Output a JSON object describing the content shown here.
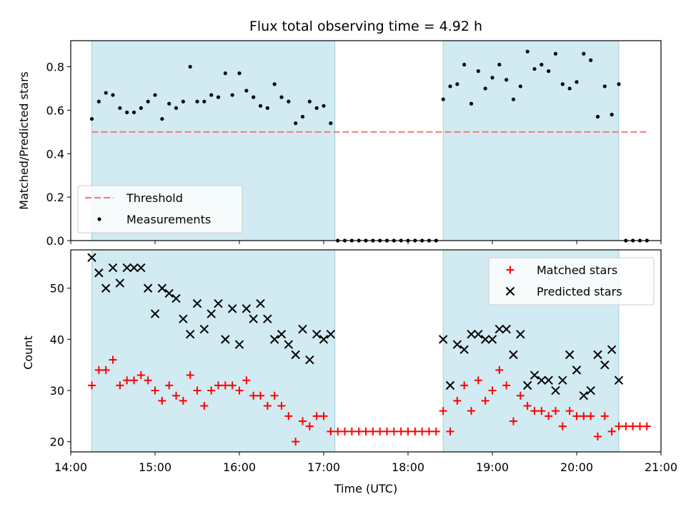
{
  "chart_data": [
    {
      "type": "scatter",
      "title": "Flux total observing time = 4.92 h",
      "xlabel": "",
      "ylabel": "Matched/Predicted stars",
      "xlim": [
        "14:00",
        "21:00"
      ],
      "ylim": [
        0,
        0.92
      ],
      "yticks": [
        "0.0",
        "0.2",
        "0.4",
        "0.6",
        "0.8"
      ],
      "legend_position": "lower-left",
      "observing_windows": [
        [
          "14:15",
          "17:08"
        ],
        [
          "18:25",
          "20:30"
        ]
      ],
      "window_color": "#add8e6",
      "series": [
        {
          "name": "Threshold",
          "kind": "dashed-line",
          "color": "#f08080",
          "x": [
            "14:15",
            "20:50"
          ],
          "y": [
            0.5,
            0.5
          ]
        },
        {
          "name": "Measurements",
          "kind": "points",
          "color": "#000000",
          "x": [
            "14:15",
            "14:20",
            "14:25",
            "14:30",
            "14:35",
            "14:40",
            "14:45",
            "14:50",
            "14:55",
            "15:00",
            "15:05",
            "15:10",
            "15:15",
            "15:20",
            "15:25",
            "15:30",
            "15:35",
            "15:40",
            "15:45",
            "15:50",
            "15:55",
            "16:00",
            "16:05",
            "16:10",
            "16:15",
            "16:20",
            "16:25",
            "16:30",
            "16:35",
            "16:40",
            "16:45",
            "16:50",
            "16:55",
            "17:00",
            "17:05",
            "17:10",
            "17:15",
            "17:20",
            "17:25",
            "17:30",
            "17:35",
            "17:40",
            "17:45",
            "17:50",
            "17:55",
            "18:00",
            "18:05",
            "18:10",
            "18:15",
            "18:20",
            "18:25",
            "18:30",
            "18:35",
            "18:40",
            "18:45",
            "18:50",
            "18:55",
            "19:00",
            "19:05",
            "19:10",
            "19:15",
            "19:20",
            "19:25",
            "19:30",
            "19:35",
            "19:40",
            "19:45",
            "19:50",
            "19:55",
            "20:00",
            "20:05",
            "20:10",
            "20:15",
            "20:20",
            "20:25",
            "20:30",
            "20:35",
            "20:40",
            "20:45",
            "20:50"
          ],
          "y": [
            0.56,
            0.64,
            0.68,
            0.67,
            0.61,
            0.59,
            0.59,
            0.61,
            0.64,
            0.67,
            0.56,
            0.63,
            0.61,
            0.64,
            0.8,
            0.64,
            0.64,
            0.67,
            0.66,
            0.77,
            0.67,
            0.77,
            0.69,
            0.66,
            0.62,
            0.61,
            0.72,
            0.66,
            0.64,
            0.54,
            0.57,
            0.64,
            0.61,
            0.62,
            0.54,
            0,
            0,
            0,
            0,
            0,
            0,
            0,
            0,
            0,
            0,
            0,
            0,
            0,
            0,
            0,
            0.65,
            0.71,
            0.72,
            0.81,
            0.63,
            0.78,
            0.7,
            0.75,
            0.81,
            0.74,
            0.65,
            0.71,
            0.87,
            0.79,
            0.81,
            0.78,
            0.86,
            0.72,
            0.7,
            0.73,
            0.86,
            0.83,
            0.57,
            0.71,
            0.58,
            0.72,
            0,
            0,
            0,
            0
          ]
        }
      ]
    },
    {
      "type": "scatter",
      "title": "",
      "xlabel": "Time (UTC)",
      "ylabel": "Count",
      "xlim": [
        "14:00",
        "21:00"
      ],
      "xticks": [
        "14:00",
        "15:00",
        "16:00",
        "17:00",
        "18:00",
        "19:00",
        "20:00",
        "21:00"
      ],
      "ylim": [
        18,
        57.5
      ],
      "yticks": [
        "20",
        "30",
        "40",
        "50"
      ],
      "legend_position": "upper-right",
      "observing_windows": [
        [
          "14:15",
          "17:08"
        ],
        [
          "18:25",
          "20:30"
        ]
      ],
      "window_color": "#add8e6",
      "series": [
        {
          "name": "Matched stars",
          "marker": "plus",
          "color": "#ff0000",
          "x": [
            "14:15",
            "14:20",
            "14:25",
            "14:30",
            "14:35",
            "14:40",
            "14:45",
            "14:50",
            "14:55",
            "15:00",
            "15:05",
            "15:10",
            "15:15",
            "15:20",
            "15:25",
            "15:30",
            "15:35",
            "15:40",
            "15:45",
            "15:50",
            "15:55",
            "16:00",
            "16:05",
            "16:10",
            "16:15",
            "16:20",
            "16:25",
            "16:30",
            "16:35",
            "16:40",
            "16:45",
            "16:50",
            "16:55",
            "17:00",
            "17:05",
            "17:10",
            "17:15",
            "17:20",
            "17:25",
            "17:30",
            "17:35",
            "17:40",
            "17:45",
            "17:50",
            "17:55",
            "18:00",
            "18:05",
            "18:10",
            "18:15",
            "18:20",
            "18:25",
            "18:30",
            "18:35",
            "18:40",
            "18:45",
            "18:50",
            "18:55",
            "19:00",
            "19:05",
            "19:10",
            "19:15",
            "19:20",
            "19:25",
            "19:30",
            "19:35",
            "19:40",
            "19:45",
            "19:50",
            "19:55",
            "20:00",
            "20:05",
            "20:10",
            "20:15",
            "20:20",
            "20:25",
            "20:30",
            "20:35",
            "20:40",
            "20:45",
            "20:50"
          ],
          "y": [
            31,
            34,
            34,
            36,
            31,
            32,
            32,
            33,
            32,
            30,
            28,
            31,
            29,
            28,
            33,
            30,
            27,
            30,
            31,
            31,
            31,
            30,
            32,
            29,
            29,
            27,
            29,
            27,
            25,
            20,
            24,
            23,
            25,
            25,
            22,
            22,
            22,
            22,
            22,
            22,
            22,
            22,
            22,
            22,
            22,
            22,
            22,
            22,
            22,
            22,
            26,
            22,
            28,
            31,
            26,
            32,
            28,
            30,
            34,
            31,
            24,
            29,
            27,
            26,
            26,
            25,
            26,
            23,
            26,
            25,
            25,
            25,
            21,
            25,
            22,
            23,
            23,
            23,
            23,
            23
          ]
        },
        {
          "name": "Predicted stars",
          "marker": "x",
          "color": "#000000",
          "x": [
            "14:15",
            "14:20",
            "14:25",
            "14:30",
            "14:35",
            "14:40",
            "14:45",
            "14:50",
            "14:55",
            "15:00",
            "15:05",
            "15:10",
            "15:15",
            "15:20",
            "15:25",
            "15:30",
            "15:35",
            "15:40",
            "15:45",
            "15:50",
            "15:55",
            "16:00",
            "16:05",
            "16:10",
            "16:15",
            "16:20",
            "16:25",
            "16:30",
            "16:35",
            "16:40",
            "16:45",
            "16:50",
            "16:55",
            "17:00",
            "17:05",
            "18:25",
            "18:30",
            "18:35",
            "18:40",
            "18:45",
            "18:50",
            "18:55",
            "19:00",
            "19:05",
            "19:10",
            "19:15",
            "19:20",
            "19:25",
            "19:30",
            "19:35",
            "19:40",
            "19:45",
            "19:50",
            "19:55",
            "20:00",
            "20:05",
            "20:10",
            "20:15",
            "20:20",
            "20:25",
            "20:30"
          ],
          "y": [
            56,
            53,
            50,
            54,
            51,
            54,
            54,
            54,
            50,
            45,
            50,
            49,
            48,
            44,
            41,
            47,
            42,
            45,
            47,
            40,
            46,
            39,
            46,
            44,
            47,
            44,
            40,
            41,
            39,
            37,
            42,
            36,
            41,
            40,
            41,
            40,
            31,
            39,
            38,
            41,
            41,
            40,
            40,
            42,
            42,
            37,
            41,
            31,
            33,
            32,
            32,
            30,
            32,
            37,
            34,
            29,
            30,
            37,
            35,
            38,
            32
          ]
        }
      ]
    }
  ]
}
